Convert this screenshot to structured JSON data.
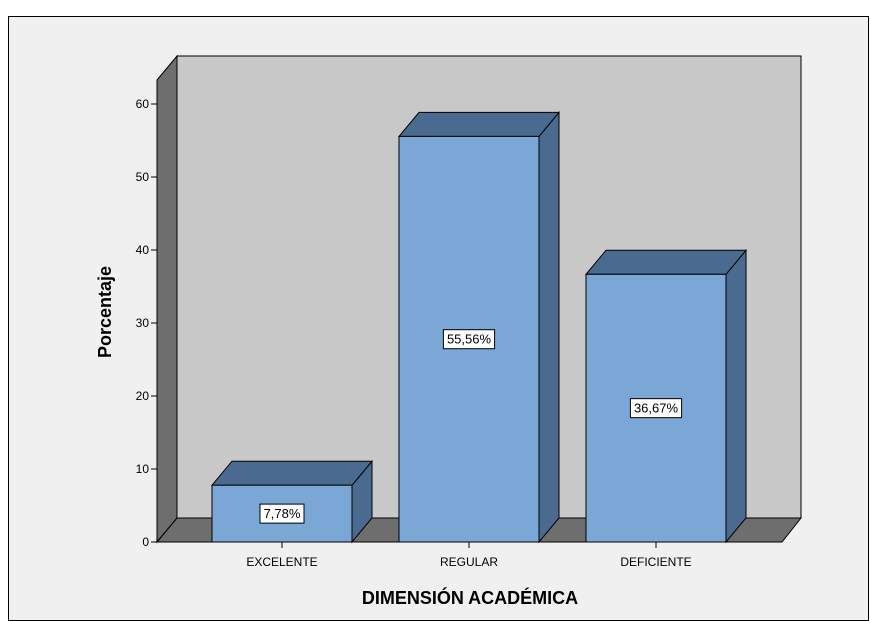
{
  "chart_data": {
    "type": "bar",
    "categories": [
      "EXCELENTE",
      "REGULAR",
      "DEFICIENTE"
    ],
    "values": [
      7.78,
      55.56,
      36.67
    ],
    "data_labels": [
      "7,78%",
      "55,56%",
      "36,67%"
    ],
    "xlabel": "DIMENSIÓN ACADÉMICA",
    "ylabel": "Porcentaje",
    "ylim": [
      0,
      60
    ],
    "yticks": [
      "0",
      "10",
      "20",
      "30",
      "40",
      "50",
      "60"
    ],
    "grid": false,
    "style": "3d",
    "colors": {
      "bar_front": "#7aa7d6",
      "bar_top": "#4a6b8f",
      "bar_side": "#4a6b8f",
      "back_wall": "#c8c8c8",
      "side_wall": "#6e6e6e",
      "floor": "#6e6e6e",
      "frame_bg": "#f0f0f0"
    }
  }
}
